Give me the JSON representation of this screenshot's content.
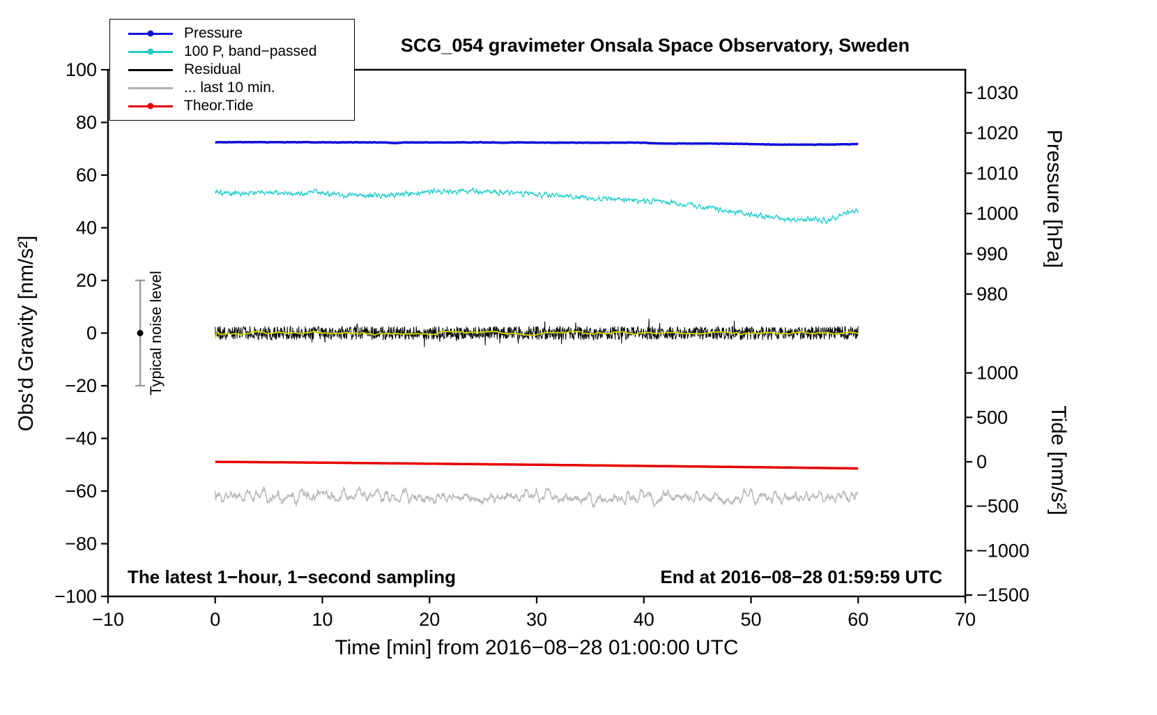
{
  "chart_data": {
    "type": "line",
    "title": "SCG_054 gravimeter Onsala Space Observatory, Sweden",
    "x_axis": {
      "label": "Time [min] from 2016−08−28 01:00:00 UTC",
      "lim": [
        -10,
        70
      ],
      "ticks": [
        -10,
        0,
        10,
        20,
        30,
        40,
        50,
        60,
        70
      ]
    },
    "left_axis": {
      "label": "Obs'd Gravity [nm/s²]",
      "lim": [
        -100,
        100
      ],
      "ticks": [
        -100,
        -80,
        -60,
        -40,
        -20,
        0,
        20,
        40,
        60,
        80,
        100
      ]
    },
    "pressure_axis": {
      "label": "Pressure [hPa]",
      "lim": [
        904.9,
        1035.7
      ],
      "ticks": [
        1030,
        1020,
        1010,
        1000,
        990,
        980
      ]
    },
    "tide_axis": {
      "label": "Tide [nm/s²]",
      "lim": [
        -1515,
        4412
      ],
      "ticks": [
        1000,
        500,
        0,
        -500,
        -1000,
        -1500
      ]
    },
    "legend": [
      {
        "label": "Pressure",
        "color": "#1010d8",
        "marker": true
      },
      {
        "label": "100 P, band−passed",
        "color": "#20cccc",
        "marker": true
      },
      {
        "label": "Residual",
        "color": "#000000",
        "marker": false
      },
      {
        "label": "... last 10 min.",
        "color": "#b0b0b0",
        "marker": false
      },
      {
        "label": "Theor.Tide",
        "color": "#e60000",
        "marker": true
      }
    ],
    "noise_marker": {
      "x": -7,
      "low": -20,
      "high": 20,
      "center": 0,
      "label": "Typical noise level"
    },
    "annotations": {
      "bottom_left": "The latest 1−hour, 1−second sampling",
      "bottom_right": "End at 2016−08−28 01:59:59 UTC"
    },
    "series": [
      {
        "name": "100 P, band-passed",
        "color": "#20cccc",
        "width": 1.3,
        "seed": 22,
        "noise": 0.85,
        "smooth": 3,
        "x": [
          0,
          3,
          6,
          8,
          9,
          11,
          13,
          15,
          17,
          19,
          21,
          23,
          25,
          27,
          29,
          31,
          33,
          35,
          37,
          39,
          41,
          43,
          45,
          47,
          49,
          51,
          53,
          55,
          56,
          57,
          58,
          59,
          60
        ],
        "y": [
          53.3,
          53.2,
          53.4,
          53.0,
          53.5,
          52.8,
          52.5,
          52.2,
          52.6,
          53.3,
          53.8,
          53.9,
          53.5,
          53.4,
          53.0,
          52.4,
          51.8,
          51.2,
          50.8,
          50.4,
          50.1,
          49.3,
          48.2,
          47.0,
          45.8,
          44.6,
          43.4,
          42.8,
          43.2,
          42.6,
          43.8,
          45.6,
          46.3
        ]
      },
      {
        "name": "Pressure",
        "color": "#1010d8",
        "width": 3.5,
        "seed": 11,
        "noise": 0.06,
        "smooth": 6,
        "x": [
          0,
          5,
          10,
          16,
          16.8,
          17.6,
          26,
          27,
          27.8,
          33,
          40,
          41.5,
          46,
          50,
          53,
          56,
          58,
          60
        ],
        "y": [
          72.5,
          72.5,
          72.45,
          72.4,
          72.1,
          72.4,
          72.4,
          72.25,
          72.4,
          72.3,
          72.3,
          72.0,
          72.0,
          71.8,
          71.55,
          71.6,
          71.65,
          71.8
        ]
      },
      {
        "name": "Theor.Tide",
        "color": "#e60000",
        "width": 3.5,
        "seed": 55,
        "noise": 0,
        "smooth": 1,
        "x": [
          0,
          10,
          20,
          30,
          40,
          50,
          60
        ],
        "y": [
          -48.9,
          -49.2,
          -49.6,
          -50.0,
          -50.45,
          -50.9,
          -51.4
        ]
      },
      {
        "name": "last 10 min",
        "color": "#b8b8b8",
        "width": 1.5,
        "seed": 66,
        "noise": 2.2,
        "smooth": 8,
        "x": [
          0,
          60
        ],
        "y": [
          -62.2,
          -62.5
        ]
      },
      {
        "name": "Residual",
        "color": "#000000",
        "width": 1.0,
        "seed": 33,
        "noise": 2.6,
        "smooth": 1,
        "spiky": true,
        "x": [
          0,
          60
        ],
        "y": [
          0,
          0
        ]
      },
      {
        "name": "Residual smoothed",
        "color": "#d6d600",
        "width": 1.8,
        "seed": 44,
        "noise": 0.55,
        "smooth": 30,
        "x": [
          0,
          60
        ],
        "y": [
          0,
          0
        ]
      }
    ]
  }
}
